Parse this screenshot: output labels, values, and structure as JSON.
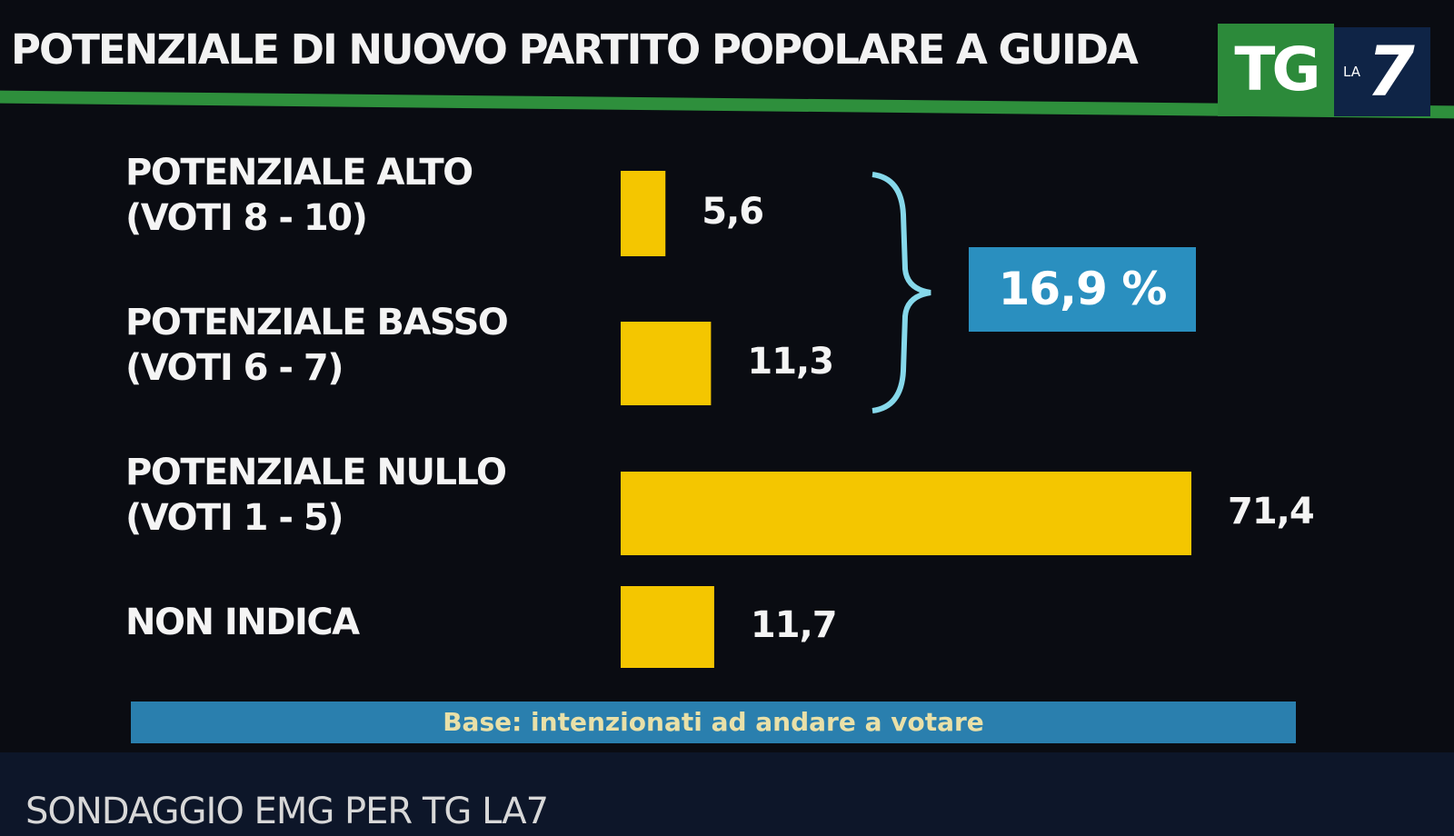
{
  "chart_data": {
    "type": "bar",
    "orientation": "horizontal",
    "title": "POTENZIALE DI NUOVO PARTITO POPOLARE A GUIDA",
    "categories": [
      "POTENZIALE ALTO\n(VOTI 8 - 10)",
      "POTENZIALE BASSO\n(VOTI 6 - 7)",
      "POTENZIALE NULLO\n(VOTI 1 - 5)",
      "NON INDICA"
    ],
    "values": [
      5.6,
      11.3,
      71.4,
      11.7
    ],
    "value_labels": [
      "5,6",
      "11,3",
      "71,4",
      "11,7"
    ],
    "color": "#f4c600",
    "annotation": "16,9 %",
    "note": "Base: intenzionati ad andare a votare",
    "source": "SONDAGGIO EMG PER TG LA7",
    "logo": {
      "left": "TG",
      "small": "LA",
      "right": "7"
    }
  }
}
